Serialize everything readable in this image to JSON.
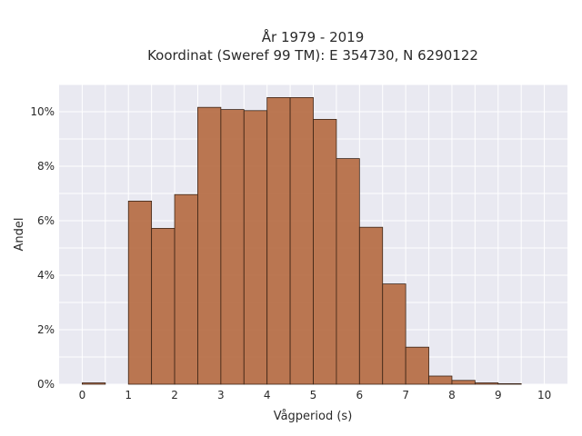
{
  "chart_data": {
    "type": "bar",
    "title": "År 1979 - 2019",
    "subtitle": "Koordinat (Sweref 99 TM): E 354730, N 6290122",
    "xlabel": "Vågperiod (s)",
    "ylabel": "Andel",
    "xlim": [
      -0.5,
      10.5
    ],
    "ylim": [
      0,
      11
    ],
    "x_ticks": [
      0,
      1,
      2,
      3,
      4,
      5,
      6,
      7,
      8,
      9,
      10
    ],
    "y_ticks": [
      0,
      2,
      4,
      6,
      8,
      10
    ],
    "y_tick_labels": [
      "0%",
      "2%",
      "4%",
      "6%",
      "8%",
      "10%"
    ],
    "bin_width": 0.5,
    "bins": [
      {
        "start": 0.0,
        "value": 0.05
      },
      {
        "start": 0.5,
        "value": 0.0
      },
      {
        "start": 1.0,
        "value": 6.72
      },
      {
        "start": 1.5,
        "value": 5.72
      },
      {
        "start": 2.0,
        "value": 6.96
      },
      {
        "start": 2.5,
        "value": 10.16
      },
      {
        "start": 3.0,
        "value": 10.08
      },
      {
        "start": 3.5,
        "value": 10.04
      },
      {
        "start": 4.0,
        "value": 10.52
      },
      {
        "start": 4.5,
        "value": 10.52
      },
      {
        "start": 5.0,
        "value": 9.72
      },
      {
        "start": 5.5,
        "value": 8.28
      },
      {
        "start": 6.0,
        "value": 5.76
      },
      {
        "start": 6.5,
        "value": 3.68
      },
      {
        "start": 7.0,
        "value": 1.36
      },
      {
        "start": 7.5,
        "value": 0.3
      },
      {
        "start": 8.0,
        "value": 0.14
      },
      {
        "start": 8.5,
        "value": 0.05
      },
      {
        "start": 9.0,
        "value": 0.02
      }
    ],
    "bar_color": "#b5693f",
    "bar_edge_color": "#3b2416",
    "plot_background": "#e9e9f1",
    "grid": true
  }
}
